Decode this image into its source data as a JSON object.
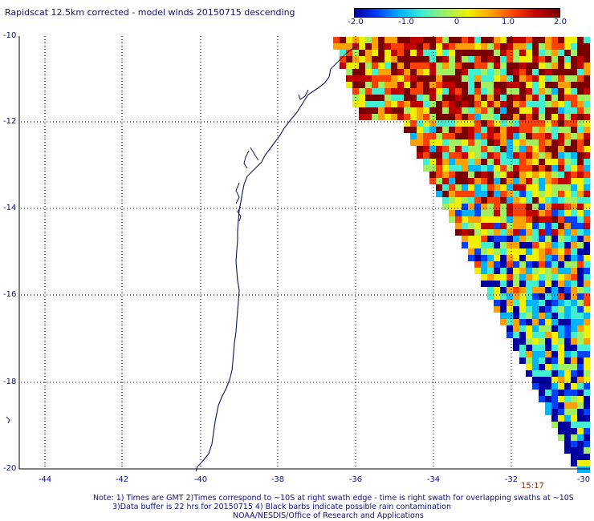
{
  "title": "Rapidscat 12.5km corrected - model winds 20150715 descending",
  "colorbar": {
    "ticks": [
      "-2.0",
      "-1.0",
      "0",
      "1.0",
      "2.0"
    ],
    "colors": [
      "#0000a0",
      "#0040ff",
      "#00b4ff",
      "#40f0d0",
      "#a0f060",
      "#f0f000",
      "#ffa000",
      "#ff4000",
      "#c00000",
      "#780000"
    ]
  },
  "axes": {
    "lat_labels": [
      "-10",
      "-12",
      "-14",
      "-16",
      "-18",
      "-20"
    ],
    "lon_labels": [
      "-44",
      "-42",
      "-40",
      "-38",
      "-36",
      "-34",
      "-32",
      "-30"
    ]
  },
  "time_label": "15:17",
  "notes": {
    "line1": "Note: 1) Times are GMT 2)Times correspond to ~10S at right swath edge - time is right swath for overlapping swaths at ~10S",
    "line2": "3)Data buffer is 22 hrs for 20150715 4) Black barbs indicate possible rain contamination",
    "line3": "NOAA/NESDIS/Office of Research and Applications"
  },
  "map_colors": {
    "coastline": "#101060",
    "grid": "#000000"
  }
}
